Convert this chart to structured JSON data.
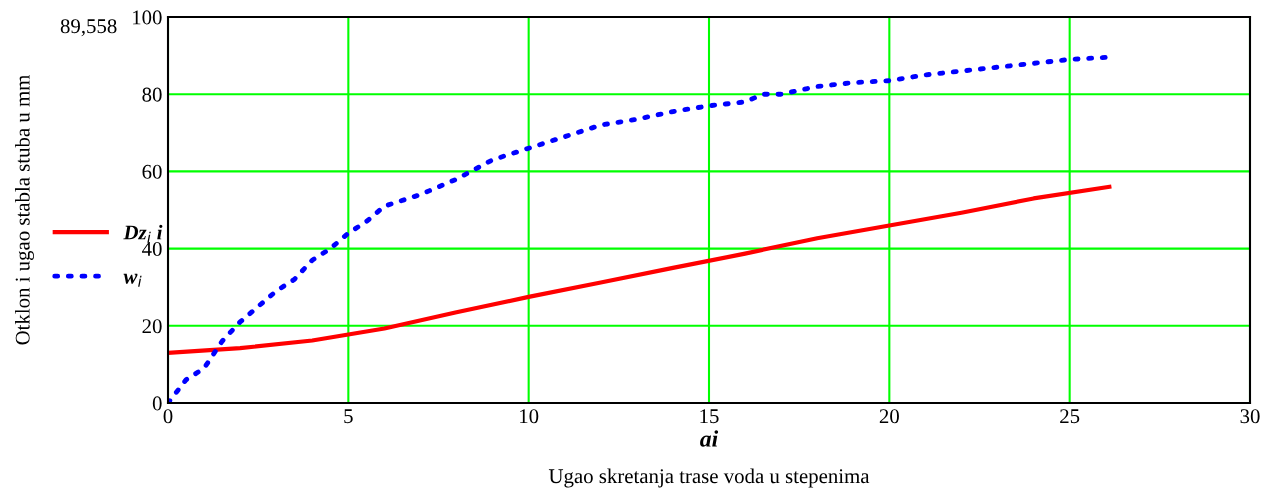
{
  "chart_data": {
    "type": "line",
    "xlabel": "ai",
    "ylabel": "Otklon i ugao stabla stuba u mm",
    "annotations": [
      "89,558",
      "Ugao skretanja trase voda u stepenima"
    ],
    "xlim": [
      0,
      30
    ],
    "xticks": [
      0,
      5,
      10,
      15,
      20,
      25,
      30
    ],
    "ylim": [
      0,
      100
    ],
    "yticks": [
      0,
      20,
      40,
      60,
      80,
      100
    ],
    "grid": true,
    "legend": "left",
    "series": [
      {
        "name": "Dz$_{i}$ i",
        "color": "#ff0000",
        "line_style": "solid",
        "x": [
          0,
          2,
          4,
          6,
          8,
          10,
          12,
          14,
          16,
          18,
          20,
          22,
          24,
          26.1
        ],
        "values": [
          13,
          14.2,
          16.2,
          19.3,
          23.5,
          27.5,
          31.2,
          35,
          38.7,
          42.7,
          46,
          49.3,
          53,
          56
        ]
      },
      {
        "name": "w$_{i}$",
        "color": "#0000ff",
        "line_style": "dotted",
        "x": [
          0,
          0.5,
          1,
          1.5,
          2,
          2.5,
          3,
          3.5,
          4,
          4.5,
          5,
          5.5,
          6,
          7,
          8,
          9,
          10,
          11,
          12,
          13,
          14,
          15,
          16,
          16.5,
          17,
          18,
          19,
          20,
          21,
          22,
          23,
          24,
          25,
          26.1
        ],
        "values": [
          0,
          6,
          9,
          16,
          21,
          25,
          29,
          32,
          37,
          40,
          44,
          47,
          51,
          54,
          58,
          63,
          66,
          69,
          72,
          73.5,
          75.5,
          77,
          78,
          80,
          80,
          82,
          83,
          83.5,
          85,
          86,
          87,
          88,
          89,
          89.6
        ]
      }
    ]
  }
}
